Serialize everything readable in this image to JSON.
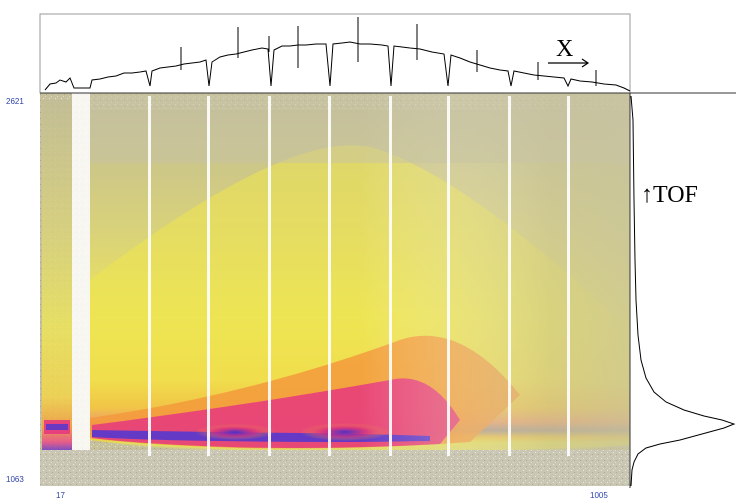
{
  "y_axis": {
    "top_label": "2621",
    "bottom_label": "1063"
  },
  "x_axis": {
    "left_label": "17",
    "right_label": "1005"
  },
  "annotations": {
    "x_label": "X",
    "tof_label": "↑TOF"
  },
  "colors": {
    "background_noise": "#b8b38c",
    "low": "#e8e14a",
    "mid": "#f5a03a",
    "high": "#e8307e",
    "peak": "#4a3ad8",
    "axis_text": "#2a3fa8",
    "profile_line": "#000000"
  },
  "panels": {
    "top_profile": "x-projection",
    "main_map": "tof-vs-x intensity map",
    "right_profile": "tof-projection"
  }
}
